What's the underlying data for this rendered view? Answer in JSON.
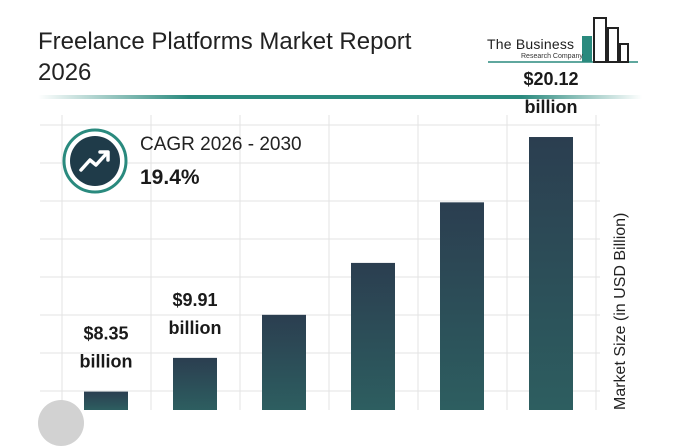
{
  "header": {
    "title": "Freelance Platforms Market Report 2026",
    "brand_name": "The Business",
    "brand_sub": "Research Company"
  },
  "cagr": {
    "label": "CAGR 2026 - 2030",
    "value": "19.4%",
    "icon": "trend-up-icon"
  },
  "colors": {
    "bar_top": "#2b3e50",
    "bar_bottom": "#2d5e60",
    "accent": "#2a8a7e",
    "grid": "#e3e3e3"
  },
  "chart_data": {
    "type": "bar",
    "title": "Freelance Platforms Market Report 2026",
    "ylabel": "Market Size (in USD Billion)",
    "xlabel": "",
    "categories": [
      "",
      "",
      "",
      "",
      "",
      ""
    ],
    "values": [
      8.35,
      9.91,
      11.9,
      14.3,
      17.1,
      20.12
    ],
    "data_labels": [
      {
        "index": 0,
        "line1": "$8.35",
        "line2": "billion"
      },
      {
        "index": 1,
        "line1": "$9.91",
        "line2": "billion"
      },
      {
        "index": 5,
        "line1": "$20.12",
        "line2": "billion"
      }
    ],
    "ylim": [
      7.5,
      21.6
    ],
    "grid": true
  }
}
